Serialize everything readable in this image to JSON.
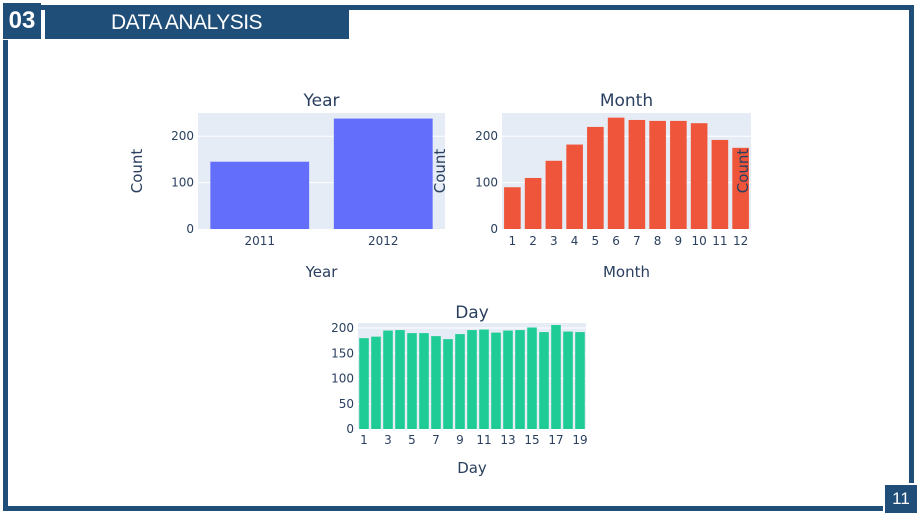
{
  "slide": {
    "section_number": "03",
    "title": "DATA ANALYSIS",
    "page_number": "11",
    "accent_color": "#1f4e79"
  },
  "chart_data": [
    {
      "type": "bar",
      "title": "Year",
      "xlabel": "Year",
      "ylabel": "Count",
      "categories": [
        "2011",
        "2012"
      ],
      "values": [
        145,
        238
      ],
      "ylim": [
        0,
        250
      ],
      "yticks": [
        0,
        100,
        200
      ],
      "grid": true,
      "color": "#636efa"
    },
    {
      "type": "bar",
      "title": "Month",
      "xlabel": "Month",
      "ylabel": "Count",
      "categories": [
        "1",
        "2",
        "3",
        "4",
        "5",
        "6",
        "7",
        "8",
        "9",
        "10",
        "11",
        "12"
      ],
      "values": [
        90,
        110,
        147,
        182,
        220,
        240,
        235,
        233,
        233,
        228,
        192,
        175
      ],
      "ylim": [
        0,
        250
      ],
      "yticks": [
        0,
        100,
        200
      ],
      "grid": true,
      "color": "#ef553b"
    },
    {
      "type": "bar",
      "title": "Day",
      "xlabel": "Day",
      "ylabel": "",
      "categories": [
        "1",
        "2",
        "3",
        "4",
        "5",
        "6",
        "7",
        "8",
        "9",
        "10",
        "11",
        "12",
        "13",
        "14",
        "15",
        "16",
        "17",
        "18",
        "19"
      ],
      "x_tick_labels": [
        "1",
        "3",
        "5",
        "7",
        "9",
        "11",
        "13",
        "15",
        "17",
        "19"
      ],
      "values": [
        180,
        183,
        195,
        196,
        190,
        190,
        184,
        178,
        188,
        196,
        197,
        191,
        195,
        196,
        201,
        192,
        206,
        193,
        192
      ],
      "ylim": [
        0,
        210
      ],
      "yticks": [
        0,
        50,
        100,
        150,
        200
      ],
      "grid": true,
      "color": "#20cc96"
    }
  ]
}
